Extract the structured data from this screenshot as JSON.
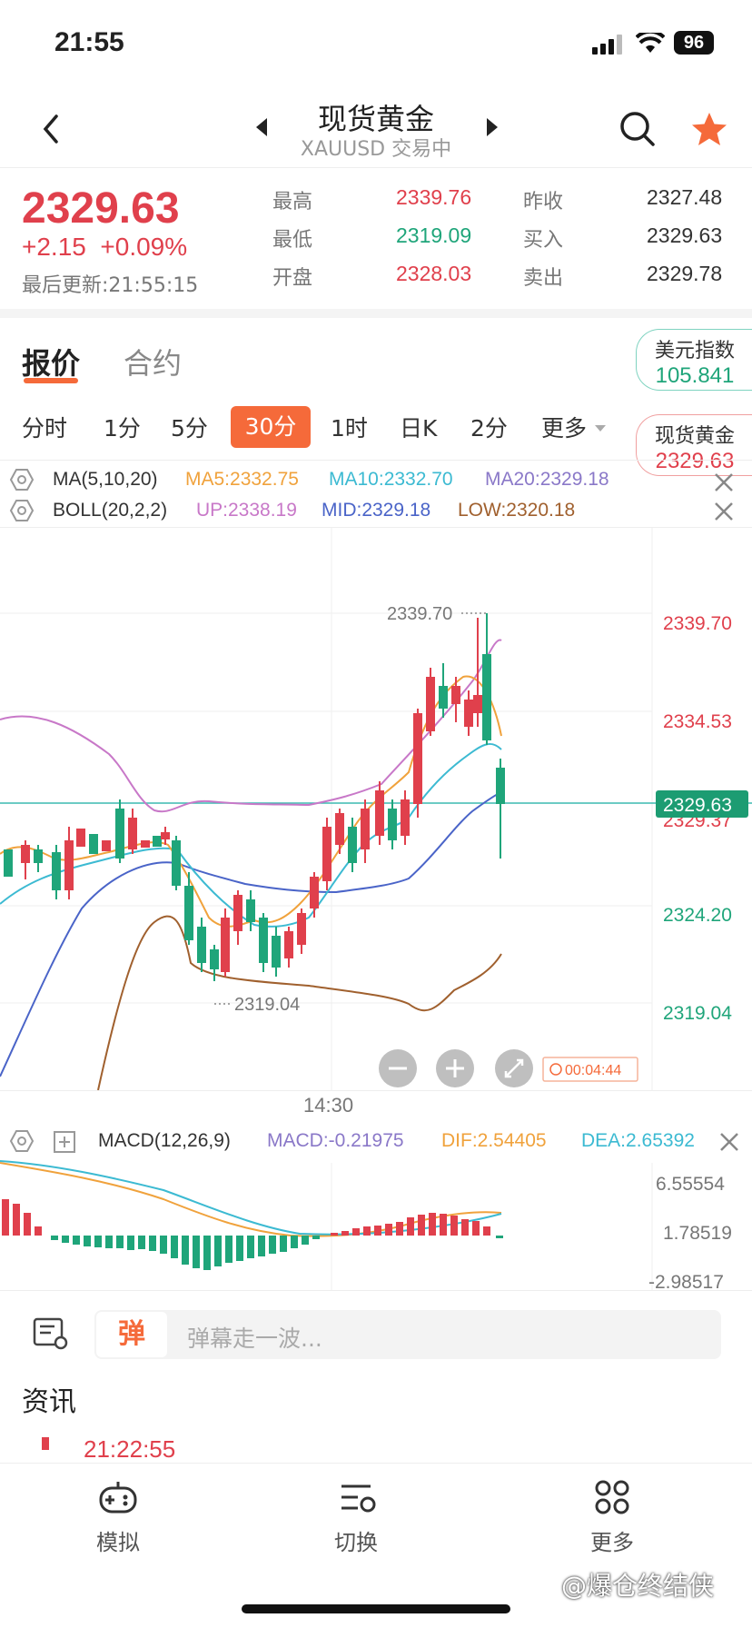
{
  "status": {
    "time": "21:55",
    "battery": "96"
  },
  "nav": {
    "title": "现货黄金",
    "subtitle": "XAUUSD 交易中",
    "back_icon": "back-icon",
    "search_icon": "search-icon",
    "favorite_icon": "star-icon"
  },
  "quote": {
    "price": "2329.63",
    "change": "+2.15  +0.09%",
    "updated": "最后更新:21:55:15",
    "high_label": "最高",
    "high": "2339.76",
    "low_label": "最低",
    "low": "2319.09",
    "open_label": "开盘",
    "open": "2328.03",
    "prev_close_label": "昨收",
    "prev_close": "2327.48",
    "bid_label": "买入",
    "bid": "2329.63",
    "ask_label": "卖出",
    "ask": "2329.78"
  },
  "tabs": [
    {
      "label": "报价"
    },
    {
      "label": "合约"
    }
  ],
  "side_cards": {
    "usd_index": {
      "label": "美元指数",
      "value": "105.841"
    },
    "gold": {
      "label": "现货黄金",
      "value": "2329.63"
    }
  },
  "periods": [
    {
      "label": "分时"
    },
    {
      "label": "1分"
    },
    {
      "label": "5分"
    },
    {
      "label": "30分"
    },
    {
      "label": "1时"
    },
    {
      "label": "日K"
    },
    {
      "label": "2分"
    },
    {
      "label": "更多"
    }
  ],
  "indicators": {
    "ma": {
      "name": "MA(5,10,20)",
      "ma5": "MA5:2332.75",
      "ma10": "MA10:2332.70",
      "ma20": "MA20:2329.18"
    },
    "boll": {
      "name": "BOLL(20,2,2)",
      "up": "UP:2338.19",
      "mid": "MID:2329.18",
      "low": "LOW:2320.18"
    },
    "macd": {
      "name": "MACD(12,26,9)",
      "macd": "MACD:-0.21975",
      "dif": "DIF:2.54405",
      "dea": "DEA:2.65392"
    }
  },
  "chart_data": {
    "type": "candlestick",
    "price_axis_ticks": [
      "2339.70",
      "2334.53",
      "2329.37",
      "2324.20",
      "2319.04"
    ],
    "current_price_label": "2329.63",
    "max_label": "2339.70",
    "min_label": "2319.04",
    "time_label": "14:30",
    "countdown": "00:04:44",
    "macd_axis_ticks": [
      "6.55554",
      "1.78519",
      "-2.98517"
    ]
  },
  "colors": {
    "up": "#e0404c",
    "down": "#1fa57a",
    "accent": "#f56a3a",
    "ma5": "#f0a23c",
    "ma10": "#3cbad2",
    "ma20": "#4a64c8",
    "boll_up": "#c878c8",
    "boll_low": "#a0602e"
  },
  "danmu": {
    "badge": "弹",
    "placeholder": "弹幕走一波..."
  },
  "news": {
    "title": "资讯",
    "time": "21:22:55"
  },
  "tabbar": [
    {
      "label": "模拟",
      "icon": "gamepad-icon"
    },
    {
      "label": "切换",
      "icon": "switch-icon"
    },
    {
      "label": "更多",
      "icon": "grid-icon"
    }
  ],
  "watermark": "@爆仓终结侠"
}
